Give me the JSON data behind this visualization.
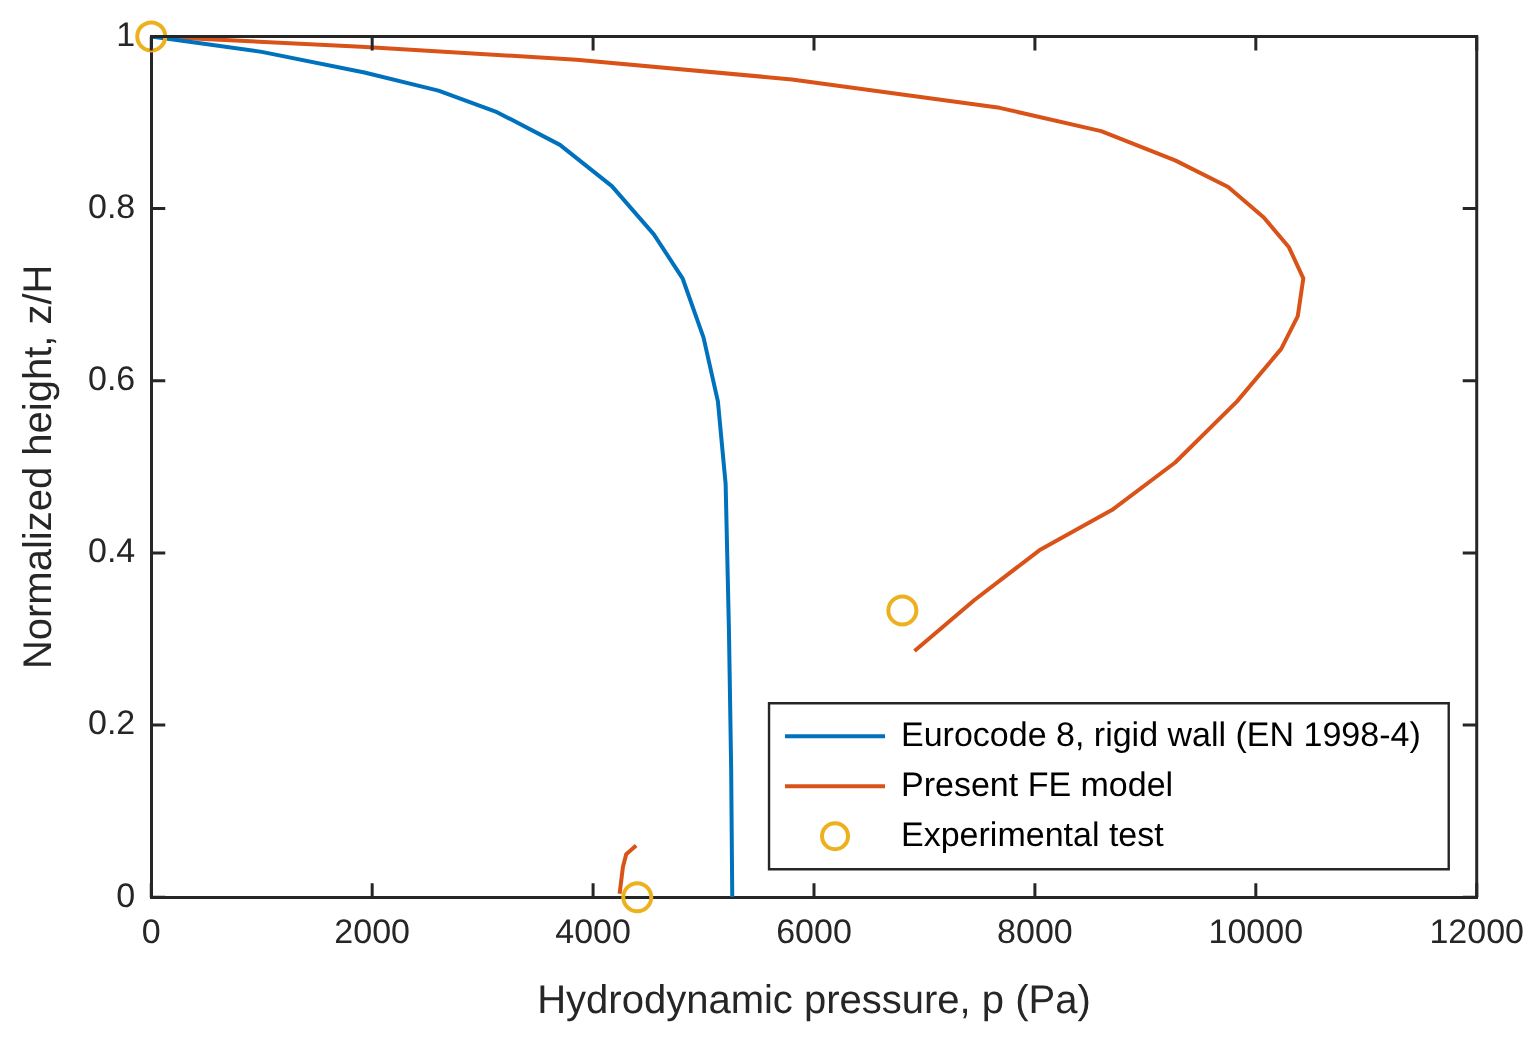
{
  "chart_data": {
    "type": "line",
    "xlabel": "Hydrodynamic pressure, p (Pa)",
    "ylabel": "Normalized height, z/H",
    "xlim": [
      0,
      12000
    ],
    "xticks": [
      0,
      2000,
      4000,
      6000,
      8000,
      10000,
      12000
    ],
    "ylim": [
      0,
      1
    ],
    "yticks": [
      0,
      0.2,
      0.4,
      0.6,
      0.8,
      1
    ],
    "grid": false,
    "legend": "bottom right",
    "marker": "none",
    "line_style": "solid",
    "series": [
      {
        "name": "Eurocode 8, rigid wall (EN 1998-4)",
        "color": "#0072bd",
        "x": [
          0,
          1000,
          1930,
          2600,
          3130,
          3700,
          4170,
          4550,
          4810,
          5000,
          5130,
          5200,
          5230,
          5250,
          5260
        ],
        "values": [
          1,
          0.982,
          0.958,
          0.937,
          0.912,
          0.874,
          0.826,
          0.77,
          0.719,
          0.65,
          0.576,
          0.48,
          0.31,
          0.15,
          0
        ]
      },
      {
        "name": "Present FE model",
        "color": "#d95319",
        "x": [
          0,
          1900,
          3850,
          5800,
          7680,
          8600,
          9270,
          9750,
          10070,
          10300,
          10430,
          10380,
          10230,
          9830,
          9270,
          8700,
          8040,
          7450,
          6910,
          5500,
          4390,
          4300,
          4270,
          4240
        ],
        "values": [
          1,
          0.988,
          0.973,
          0.95,
          0.917,
          0.89,
          0.856,
          0.825,
          0.79,
          0.755,
          0.719,
          0.675,
          0.637,
          0.576,
          0.505,
          0.45,
          0.403,
          0.345,
          0.286,
          null,
          0.06,
          0.05,
          0.035,
          0.004
        ]
      },
      {
        "name": "Experimental test",
        "color": "#edb120",
        "type": "scatter",
        "marker": "circle",
        "x": [
          0,
          6800,
          4400
        ],
        "values": [
          1,
          0.333,
          0
        ]
      }
    ]
  }
}
